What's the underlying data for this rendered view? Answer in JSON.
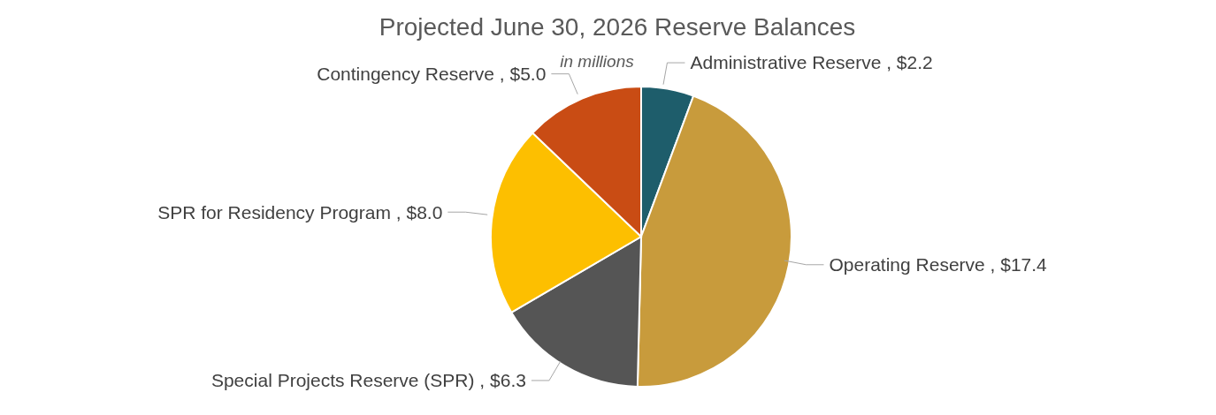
{
  "chart_data": {
    "type": "pie",
    "title": "Projected June 30, 2026 Reserve Balances",
    "subtitle": "in millions",
    "categories": [
      "Administrative Reserve",
      "Operating Reserve",
      "Special Projects Reserve (SPR)",
      "SPR for Residency Program",
      "Contingency Reserve"
    ],
    "values": [
      2.2,
      17.4,
      6.3,
      8.0,
      5.0
    ],
    "value_labels": [
      "$2.2",
      "$17.4",
      "$6.3",
      "$8.0",
      "$5.0"
    ],
    "colors": [
      "#1e5d6b",
      "#c89b3c",
      "#555555",
      "#fdbf00",
      "#c94c14"
    ],
    "legend": false
  }
}
